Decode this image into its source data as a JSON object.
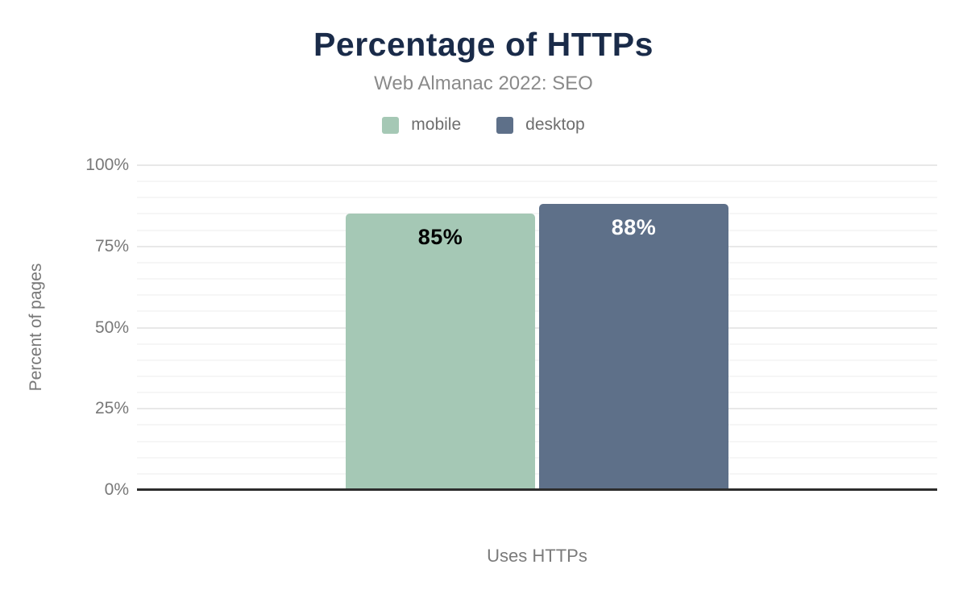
{
  "chart_data": {
    "type": "bar",
    "title": "Percentage of HTTPs",
    "subtitle": "Web Almanac 2022: SEO",
    "categories": [
      "Uses HTTPs"
    ],
    "series": [
      {
        "name": "mobile",
        "values": [
          85
        ],
        "value_labels": [
          "85%"
        ],
        "color": "#a5c8b5",
        "label_color": "#000000"
      },
      {
        "name": "desktop",
        "values": [
          88
        ],
        "value_labels": [
          "88%"
        ],
        "color": "#5e7089",
        "label_color": "#ffffff"
      }
    ],
    "xlabel": "",
    "ylabel": "Percent of pages",
    "ylim": [
      0,
      100
    ],
    "yticks": [
      0,
      25,
      50,
      75,
      100
    ],
    "ytick_labels": [
      "0%",
      "25%",
      "50%",
      "75%",
      "100%"
    ],
    "minor_tick_step": 5,
    "grid": true,
    "legend_position": "top",
    "colors": {
      "title": "#1a2b49",
      "subtitle_text": "#8a8a8a",
      "axis_text": "#787878",
      "legend_text": "#6e6e6e",
      "major_gridline": "#e8e8e8",
      "minor_gridline": "#f6f6f6",
      "axis_line": "#2d2d2d",
      "background": "#ffffff"
    }
  }
}
